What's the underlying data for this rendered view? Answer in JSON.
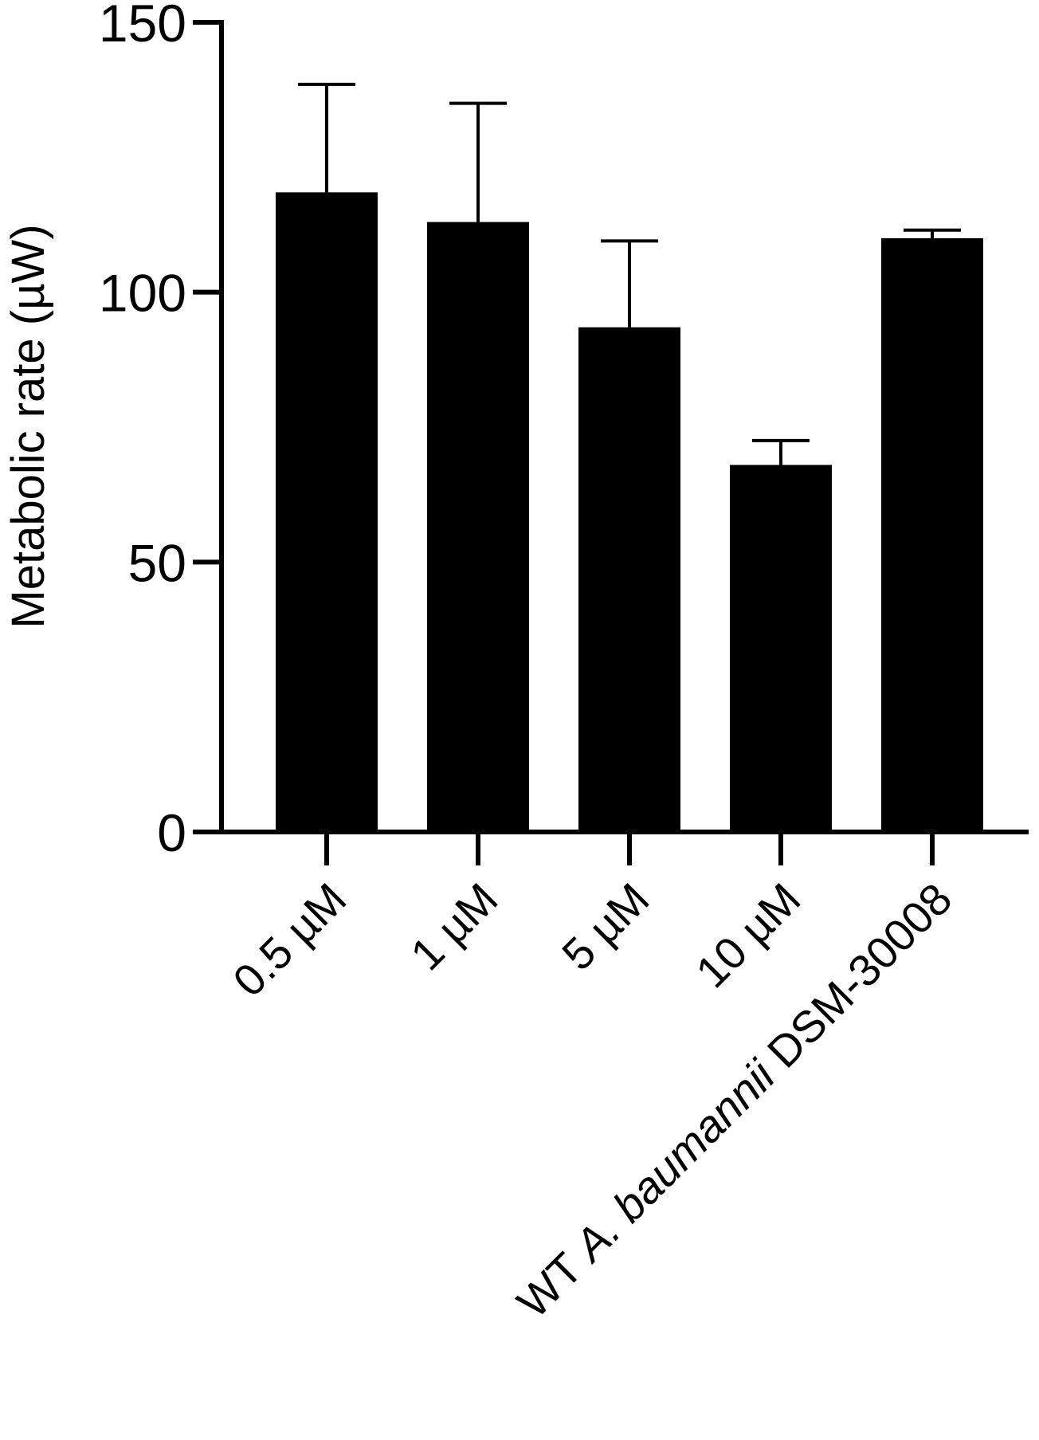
{
  "chart_data": {
    "type": "bar",
    "title": "",
    "xlabel": "",
    "ylabel": "Metabolic rate (µW)",
    "ylim": [
      0,
      150
    ],
    "yticks": [
      0,
      50,
      100,
      150
    ],
    "categories": [
      {
        "text": "0.5 µM"
      },
      {
        "text": "1 µM"
      },
      {
        "text": "5 µM"
      },
      {
        "text": "10 µM"
      },
      {
        "parts": [
          {
            "text": "WT ",
            "italic": false
          },
          {
            "text": "A. baumannii",
            "italic": true
          },
          {
            "text": " DSM-30008",
            "italic": false
          }
        ]
      }
    ],
    "values": [
      118.5,
      113,
      93.5,
      68,
      110
    ],
    "error_upper": [
      20,
      22,
      16,
      4.5,
      1.5
    ],
    "bar_color": "#000000",
    "grid": false,
    "legend": "none"
  }
}
